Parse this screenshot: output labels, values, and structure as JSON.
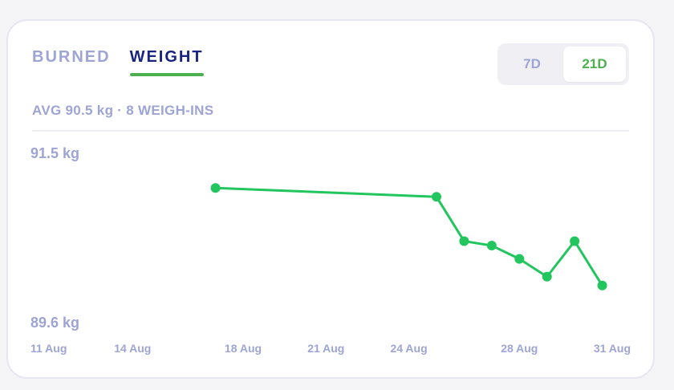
{
  "tabs": [
    {
      "label": "BURNED",
      "active": false
    },
    {
      "label": "WEIGHT",
      "active": true
    }
  ],
  "range": {
    "options": [
      {
        "label": "7D",
        "active": false
      },
      {
        "label": "21D",
        "active": true
      }
    ]
  },
  "summary": "AVG 90.5 kg · 8 WEIGH-INS",
  "colors": {
    "accent": "#4caf50",
    "line": "#22c55e",
    "muted": "#9ea4d3",
    "active_tab": "#1a237e"
  },
  "chart_data": {
    "type": "line",
    "y_top_label": "91.5 kg",
    "y_bottom_label": "89.6 kg",
    "ylim": [
      89.6,
      91.5
    ],
    "xlim": [
      "2024-08-11",
      "2024-09-01"
    ],
    "x_tick_labels": [
      "11 Aug",
      "14 Aug",
      "18 Aug",
      "21 Aug",
      "24 Aug",
      "28 Aug",
      "31 Aug"
    ],
    "x_tick_dates": [
      "2024-08-11",
      "2024-08-14",
      "2024-08-18",
      "2024-08-21",
      "2024-08-24",
      "2024-08-28",
      "2024-08-31"
    ],
    "points": [
      {
        "x": "2024-08-17",
        "y": 91.1
      },
      {
        "x": "2024-08-25",
        "y": 91.0
      },
      {
        "x": "2024-08-26",
        "y": 90.5
      },
      {
        "x": "2024-08-27",
        "y": 90.45
      },
      {
        "x": "2024-08-28",
        "y": 90.3
      },
      {
        "x": "2024-08-29",
        "y": 90.1
      },
      {
        "x": "2024-08-30",
        "y": 90.5
      },
      {
        "x": "2024-08-31",
        "y": 90.0
      }
    ]
  }
}
